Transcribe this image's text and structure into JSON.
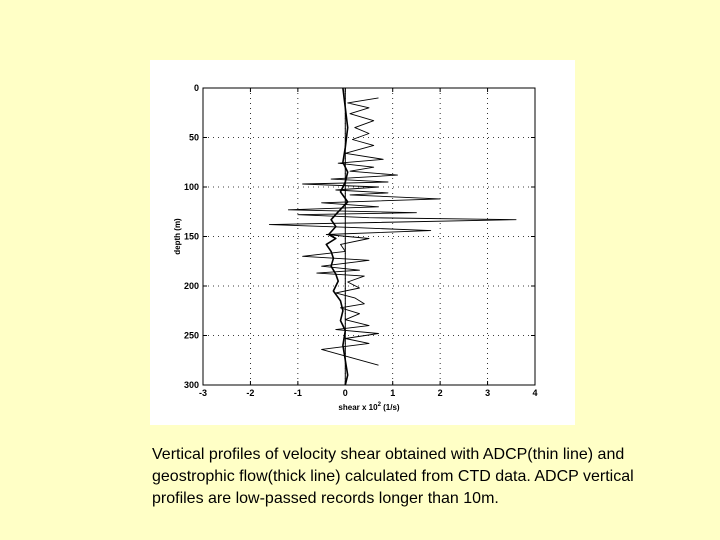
{
  "page": {
    "background": "#ffffc6"
  },
  "caption": "Vertical profiles of velocity shear obtained with ADCP(thin line) and geostrophic flow(thick line)  calculated from CTD data. ADCP vertical profiles are low-passed records longer than 10m.",
  "chart_data": {
    "type": "line",
    "title": "",
    "xlabel": "shear x 10",
    "xlabel_superscript": "2",
    "xlabel_units": " (1/s)",
    "ylabel": "depth (m)",
    "xlim": [
      -3,
      4
    ],
    "ylim": [
      300,
      0
    ],
    "y_inverted": true,
    "xticks": [
      -3,
      -2,
      -1,
      0,
      1,
      2,
      3,
      4
    ],
    "yticks": [
      0,
      50,
      100,
      150,
      200,
      250,
      300
    ],
    "xtick_labels": [
      "-3",
      "-2",
      "-1",
      "0",
      "1",
      "2",
      "3",
      "4"
    ],
    "ytick_labels": [
      "0",
      "50",
      "100",
      "150",
      "200",
      "250",
      "300"
    ],
    "grid": "dotted",
    "zero_line": 0,
    "series": [
      {
        "style": "thin",
        "x": [
          0.7,
          0.05,
          0.5,
          0.1,
          0.6,
          0.2,
          0.5,
          0.15,
          0.6,
          0.0,
          0.8,
          -0.15,
          0.6,
          0.1,
          1.1,
          -0.3,
          0.9,
          -0.9,
          0.7,
          -0.2,
          0.9,
          0.1,
          2.0,
          -0.5,
          0.7,
          -1.2,
          1.5,
          -1.0,
          0.5,
          3.6,
          -1.6,
          0.2,
          1.8,
          -0.4,
          0.5,
          -0.1,
          0.0,
          -0.9,
          0.5,
          -0.5,
          0.3,
          -0.6,
          0.4,
          0.05,
          0.3,
          -0.2,
          0.2,
          0.4,
          -0.1,
          0.3,
          0.0,
          0.5,
          -0.2,
          0.7,
          0.0,
          0.5,
          -0.5,
          0.1,
          0.7
        ],
        "y": [
          10,
          15,
          20,
          26,
          33,
          40,
          46,
          52,
          58,
          66,
          72,
          76,
          80,
          84,
          88,
          92,
          95,
          97,
          100,
          103,
          106,
          108,
          112,
          116,
          120,
          123,
          126,
          128,
          131,
          133,
          138,
          141,
          144,
          148,
          152,
          158,
          165,
          170,
          174,
          180,
          184,
          187,
          190,
          196,
          202,
          207,
          212,
          218,
          222,
          228,
          234,
          240,
          244,
          248,
          253,
          258,
          264,
          272,
          280
        ]
      },
      {
        "style": "thick",
        "x": [
          -0.05,
          0.0,
          0.05,
          0.0,
          -0.05,
          0.05,
          0.0,
          -0.1,
          0.05,
          -0.15,
          -0.3,
          -0.2,
          -0.35,
          -0.2,
          -0.4,
          -0.3,
          -0.25,
          -0.3,
          -0.2,
          -0.15,
          -0.25,
          -0.1,
          -0.05,
          -0.1,
          0.0,
          -0.05,
          0.0,
          0.05,
          0.0
        ],
        "y": [
          0,
          20,
          40,
          60,
          75,
          85,
          95,
          105,
          115,
          125,
          133,
          140,
          148,
          152,
          158,
          165,
          172,
          180,
          188,
          195,
          205,
          215,
          225,
          235,
          245,
          260,
          275,
          290,
          300
        ]
      }
    ]
  }
}
